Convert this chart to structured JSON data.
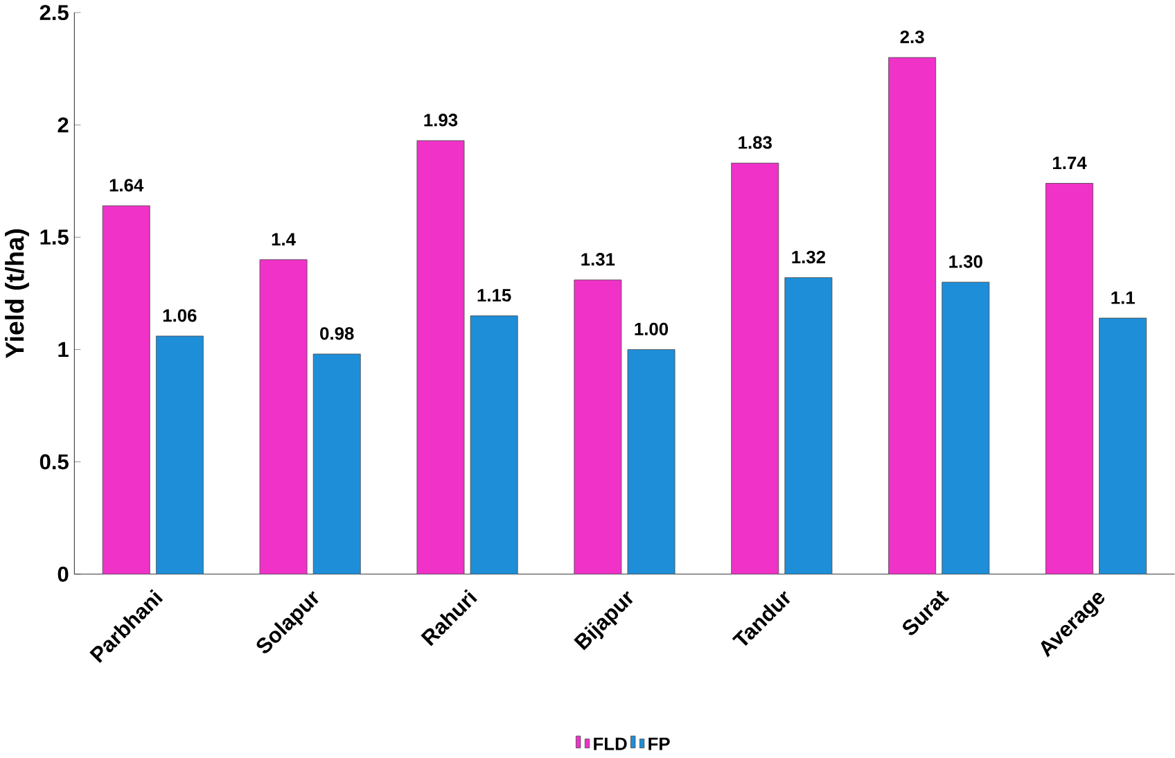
{
  "chart_data": {
    "type": "bar",
    "ylabel": "Yield (t/ha)",
    "categories": [
      "Parbhani",
      "Solapur",
      "Rahuri",
      "Bijapur",
      "Tandur",
      "Surat",
      "Average"
    ],
    "series": [
      {
        "name": "FLD",
        "color": "#f032c8",
        "values": [
          1.64,
          1.4,
          1.93,
          1.31,
          1.83,
          2.3,
          1.74
        ],
        "value_labels": [
          "1.64",
          "1.4",
          "1.93",
          "1.31",
          "1.83",
          "2.3",
          "1.74"
        ]
      },
      {
        "name": "FP",
        "color": "#1e8ed8",
        "values": [
          1.06,
          0.98,
          1.15,
          1.0,
          1.32,
          1.3,
          1.14
        ],
        "value_labels": [
          "1.06",
          "0.98",
          "1.15",
          "1.00",
          "1.32",
          "1.30",
          "1.1"
        ]
      }
    ],
    "ylim": [
      0,
      2.5
    ],
    "yticks": [
      0,
      0.5,
      1,
      1.5,
      2,
      2.5
    ],
    "legend": "bottom",
    "grid": false
  }
}
